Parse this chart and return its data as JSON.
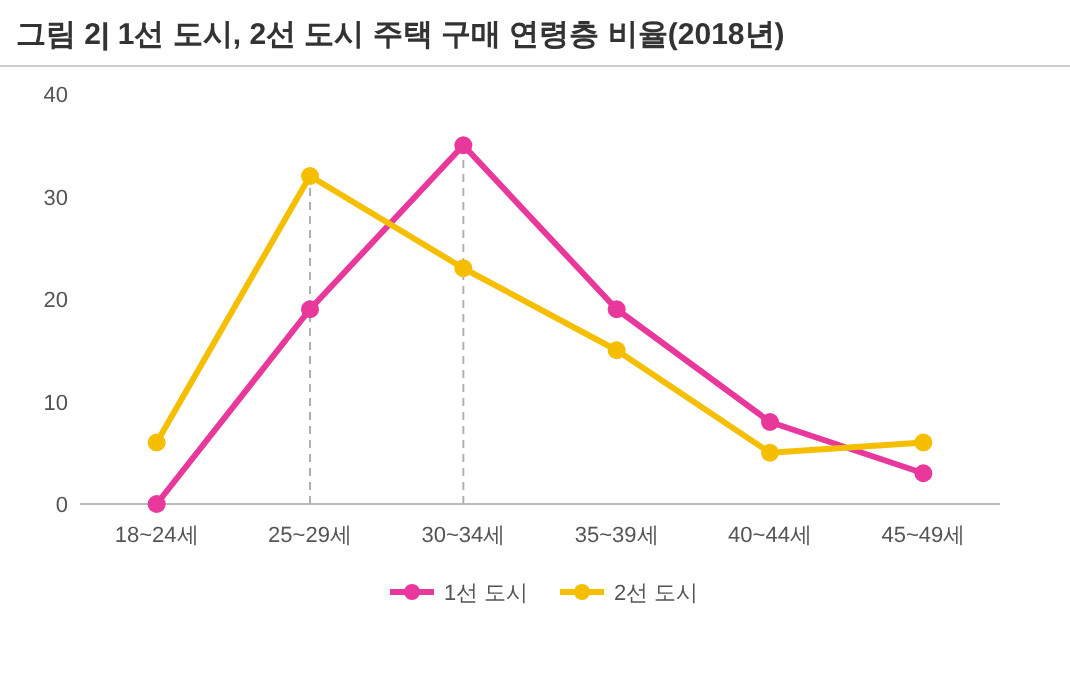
{
  "chart_data": {
    "type": "line",
    "title": "그림 2| 1선 도시, 2선 도시 주택 구매 연령층 비율(2018년)",
    "categories": [
      "18~24세",
      "25~29세",
      "30~34세",
      "35~39세",
      "40~44세",
      "45~49세"
    ],
    "series": [
      {
        "name": "1선 도시",
        "color": "#e8389b",
        "values": [
          0,
          19,
          35,
          19,
          8,
          3
        ]
      },
      {
        "name": "2선 도시",
        "color": "#f5bf00",
        "values": [
          6,
          32,
          23,
          15,
          5,
          6
        ]
      }
    ],
    "ylim": [
      0,
      40
    ],
    "yticks": [
      0,
      10,
      20,
      30,
      40
    ],
    "grid": false,
    "legend": "bottom",
    "marker": "circle",
    "line_style": "solid",
    "ref_lines": [
      {
        "axis": "x",
        "value": "25~29세",
        "color": "#b0b0b0",
        "line_style": "dashed"
      },
      {
        "axis": "x",
        "value": "30~34세",
        "color": "#b0b0b0",
        "line_style": "dashed"
      }
    ]
  }
}
